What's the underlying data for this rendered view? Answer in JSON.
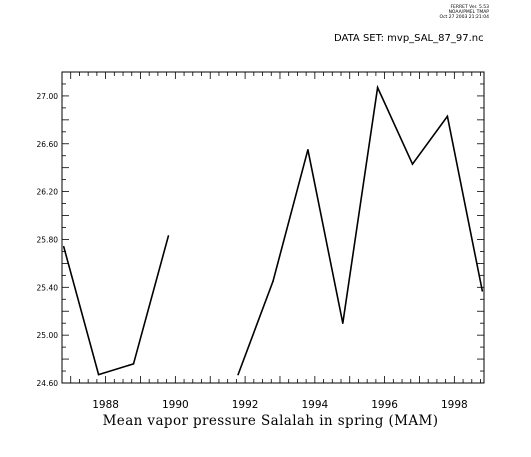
{
  "header": {
    "stamp_lines": [
      "FERRET Ver. 5.53",
      "NOAA/PMEL TMAP",
      "Oct 27 2003 21:21:04"
    ],
    "dataset_label": "DATA SET: mvp_SAL_87_97.nc"
  },
  "chart_data": {
    "type": "line",
    "title": "",
    "xlabel": "Mean vapor pressure Salalah in spring (MAM)",
    "ylabel": "",
    "xlim": [
      1986.75,
      1998.85
    ],
    "ylim": [
      24.6,
      27.2
    ],
    "x_ticks": [
      1988,
      1990,
      1992,
      1994,
      1996,
      1998
    ],
    "y_ticks": [
      24.6,
      25.0,
      25.4,
      25.8,
      26.2,
      26.6,
      27.0
    ],
    "y_tick_labels": [
      "24.60",
      "25.00",
      "25.40",
      "25.80",
      "26.20",
      "26.60",
      "27.00"
    ],
    "line_color": "#000000",
    "segments": [
      [
        {
          "x": 1986.8,
          "y": 25.74
        },
        {
          "x": 1987.8,
          "y": 24.67
        },
        {
          "x": 1988.8,
          "y": 24.76
        },
        {
          "x": 1989.8,
          "y": 25.83
        }
      ],
      [
        {
          "x": 1991.8,
          "y": 24.67
        },
        {
          "x": 1992.8,
          "y": 25.45
        },
        {
          "x": 1993.8,
          "y": 26.55
        },
        {
          "x": 1994.8,
          "y": 25.1
        },
        {
          "x": 1995.8,
          "y": 27.07
        },
        {
          "x": 1996.8,
          "y": 26.43
        },
        {
          "x": 1997.8,
          "y": 26.83
        },
        {
          "x": 1998.8,
          "y": 25.37
        }
      ]
    ]
  }
}
